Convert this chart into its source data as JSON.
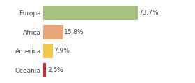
{
  "categories": [
    "Europa",
    "Africa",
    "America",
    "Oceania"
  ],
  "values": [
    73.7,
    15.8,
    7.9,
    2.6
  ],
  "labels": [
    "73,7%",
    "15,8%",
    "7,9%",
    "2,6%"
  ],
  "bar_colors": [
    "#a8c080",
    "#e8a87c",
    "#f0c84a",
    "#c03030"
  ],
  "background_color": "#ffffff",
  "xlim": [
    0,
    100
  ],
  "bar_height": 0.75,
  "label_fontsize": 6.5,
  "tick_fontsize": 6.5,
  "grid_color": "#dddddd",
  "text_color": "#444444"
}
